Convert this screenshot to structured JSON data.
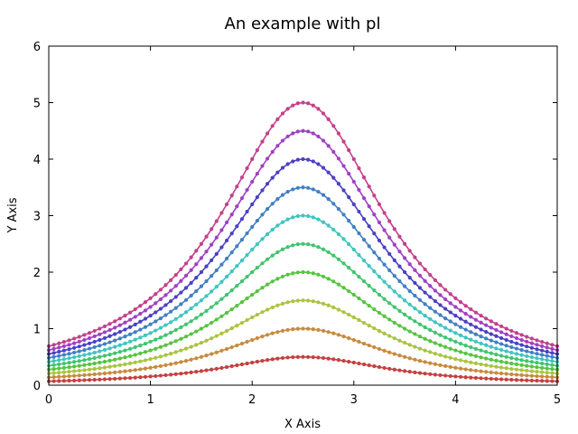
{
  "chart_data": {
    "type": "line",
    "title": "An example with pl",
    "xlabel": "X Axis",
    "ylabel": "Y Axis",
    "xlim": [
      0,
      5
    ],
    "ylim": [
      0,
      6
    ],
    "xticks": [
      "0",
      "1",
      "2",
      "3",
      "4",
      "5"
    ],
    "yticks": [
      "0",
      "1",
      "2",
      "3",
      "4",
      "5",
      "6"
    ],
    "grid": false,
    "legend": "none",
    "curve": "peak / (1 + (x - 2.5)^2)",
    "x_range": {
      "start": 0,
      "end": 5,
      "step": 0.05
    },
    "series": [
      {
        "peak": 0.5,
        "color": "#c44040",
        "values_at_x": {
          "0": 0.07,
          "1": 0.15,
          "2.5": 0.5,
          "4": 0.15,
          "5": 0.07
        }
      },
      {
        "peak": 1.0,
        "color": "#c88a3e",
        "values_at_x": {
          "0": 0.14,
          "1": 0.31,
          "2.5": 1.0,
          "4": 0.31,
          "5": 0.14
        }
      },
      {
        "peak": 1.5,
        "color": "#a9c440",
        "values_at_x": {
          "0": 0.21,
          "1": 0.46,
          "2.5": 1.5,
          "4": 0.46,
          "5": 0.21
        }
      },
      {
        "peak": 2.0,
        "color": "#56c440",
        "values_at_x": {
          "0": 0.28,
          "1": 0.62,
          "2.5": 2.0,
          "4": 0.62,
          "5": 0.28
        }
      },
      {
        "peak": 2.5,
        "color": "#40c46f",
        "values_at_x": {
          "0": 0.34,
          "1": 0.77,
          "2.5": 2.5,
          "4": 0.77,
          "5": 0.34
        }
      },
      {
        "peak": 3.0,
        "color": "#40c4c0",
        "values_at_x": {
          "0": 0.41,
          "1": 0.92,
          "2.5": 3.0,
          "4": 0.92,
          "5": 0.41
        }
      },
      {
        "peak": 3.5,
        "color": "#4080c4",
        "values_at_x": {
          "0": 0.48,
          "1": 1.08,
          "2.5": 3.5,
          "4": 1.08,
          "5": 0.48
        }
      },
      {
        "peak": 4.0,
        "color": "#4a40c4",
        "values_at_x": {
          "0": 0.55,
          "1": 1.23,
          "2.5": 4.0,
          "4": 1.23,
          "5": 0.55
        }
      },
      {
        "peak": 4.5,
        "color": "#a040c4",
        "values_at_x": {
          "0": 0.62,
          "1": 1.38,
          "2.5": 4.5,
          "4": 1.38,
          "5": 0.62
        }
      },
      {
        "peak": 5.0,
        "color": "#c4408a",
        "values_at_x": {
          "0": 0.69,
          "1": 1.54,
          "2.5": 5.0,
          "4": 1.54,
          "5": 0.69
        }
      }
    ]
  }
}
